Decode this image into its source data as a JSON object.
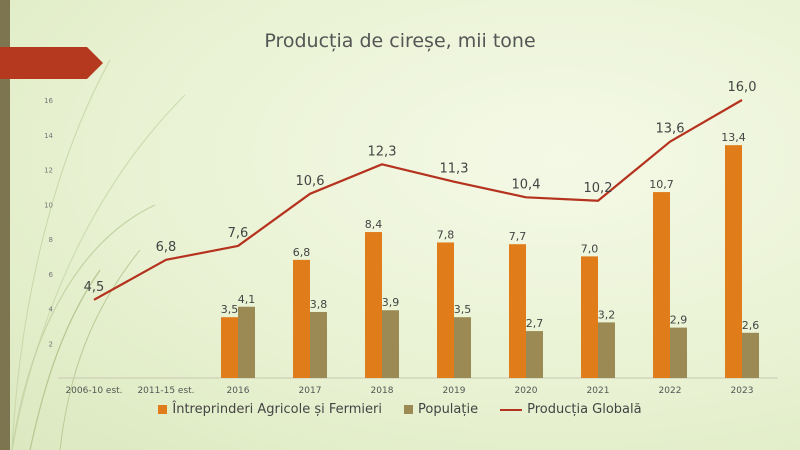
{
  "title": "Producția de cireșe, mii tone",
  "colors": {
    "series1": "#e07c1a",
    "series2": "#9c8a55",
    "line": "#b5321e",
    "arrow": "#b5391f",
    "sidebar": "#7c7550"
  },
  "chart_data": {
    "type": "bar",
    "title": "Producția de cireșe, mii tone",
    "categories": [
      "2006-10 est.",
      "2011-15 est.",
      "2016",
      "2017",
      "2018",
      "2019",
      "2020",
      "2021",
      "2022",
      "2023"
    ],
    "ylim": [
      0,
      16
    ],
    "yticks": [
      2,
      4,
      6,
      8,
      10,
      12,
      14,
      16
    ],
    "grid": false,
    "legend_position": "bottom",
    "series": [
      {
        "name": "Întreprinderi Agricole și Fermieri",
        "type": "bar",
        "values": [
          null,
          null,
          3.5,
          6.8,
          8.4,
          7.8,
          7.7,
          7.0,
          10.7,
          13.4
        ],
        "labels": [
          "",
          "",
          "3,5",
          "6,8",
          "8,4",
          "7,8",
          "7,7",
          "7,0",
          "10,7",
          "13,4"
        ]
      },
      {
        "name": "Populație",
        "type": "bar",
        "values": [
          null,
          null,
          4.1,
          3.8,
          3.9,
          3.5,
          2.7,
          3.2,
          2.9,
          2.6
        ],
        "labels": [
          "",
          "",
          "4,1",
          "3,8",
          "3,9",
          "3,5",
          "2,7",
          "3,2",
          "2,9",
          "2,6"
        ]
      },
      {
        "name": "Producția Globală",
        "type": "line",
        "values": [
          4.5,
          6.8,
          7.6,
          10.6,
          12.3,
          11.3,
          10.4,
          10.2,
          13.6,
          16.0
        ],
        "labels": [
          "4,5",
          "6,8",
          "7,6",
          "10,6",
          "12,3",
          "11,3",
          "10,4",
          "10,2",
          "13,6",
          "16,0"
        ]
      }
    ]
  }
}
